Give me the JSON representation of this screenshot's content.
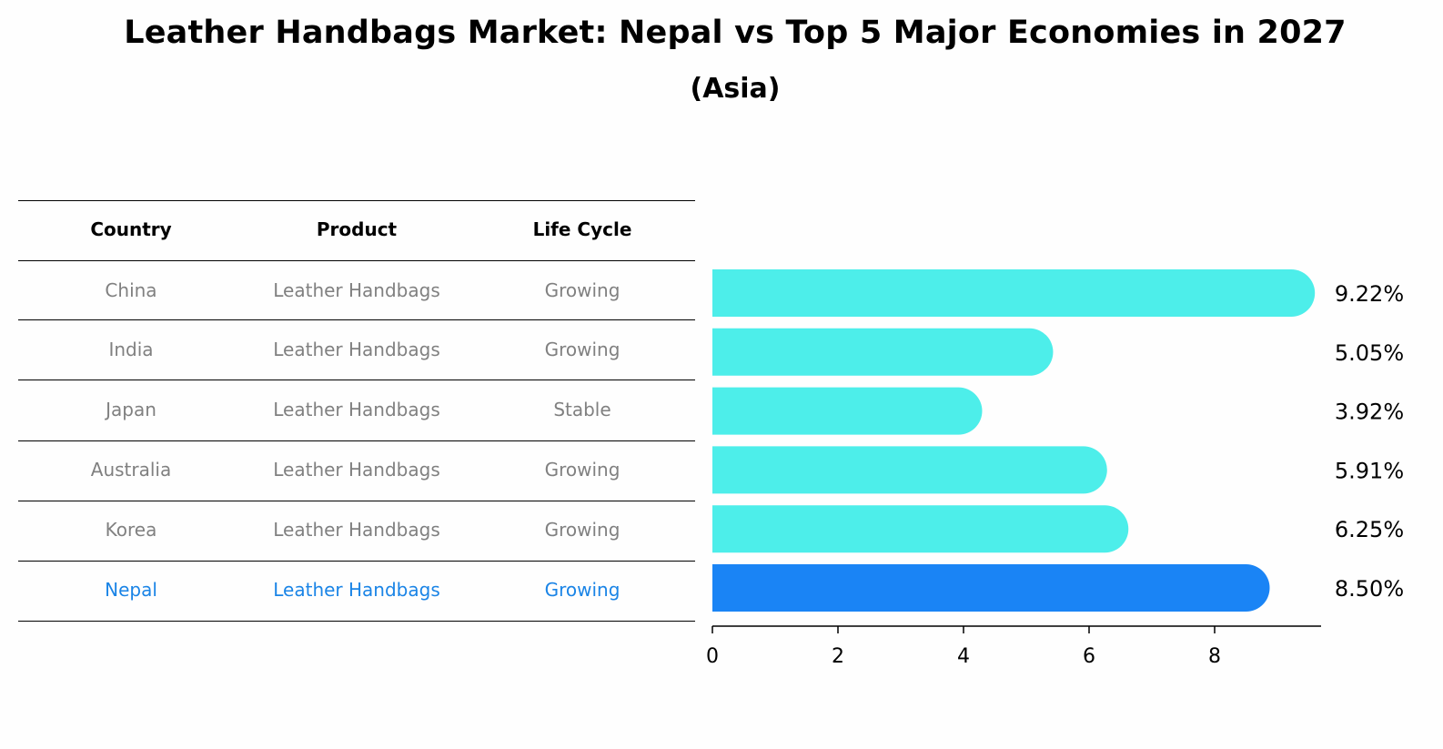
{
  "title": "Leather Handbags Market: Nepal vs Top 5 Major Economies in 2027",
  "subtitle": "(Asia)",
  "table": {
    "headers": [
      "Country",
      "Product",
      "Life Cycle"
    ],
    "rows": [
      [
        "China",
        "Leather Handbags",
        "Growing"
      ],
      [
        "India",
        "Leather Handbags",
        "Growing"
      ],
      [
        "Japan",
        "Leather Handbags",
        "Stable"
      ],
      [
        "Australia",
        "Leather Handbags",
        "Growing"
      ],
      [
        "Korea",
        "Leather Handbags",
        "Growing"
      ],
      [
        "Nepal",
        "Leather Handbags",
        "Growing"
      ]
    ],
    "highlight_row": 5
  },
  "colors": {
    "bar": "#4deeea",
    "highlight_bar": "#1a84f5",
    "muted_text": "#808080",
    "highlight_text": "#1a84e6"
  },
  "chart_data": {
    "type": "bar",
    "orientation": "horizontal",
    "categories": [
      "China",
      "India",
      "Japan",
      "Australia",
      "Korea",
      "Nepal"
    ],
    "values": [
      9.22,
      5.05,
      3.92,
      5.91,
      6.25,
      8.5
    ],
    "value_labels": [
      "9.22%",
      "5.05%",
      "3.92%",
      "5.91%",
      "6.25%",
      "8.50%"
    ],
    "highlight_category": "Nepal",
    "xlim": [
      0,
      9.7
    ],
    "xticks": [
      0,
      2,
      4,
      6,
      8
    ],
    "xtick_labels": [
      "0",
      "2",
      "4",
      "6",
      "8"
    ],
    "grid": false
  }
}
